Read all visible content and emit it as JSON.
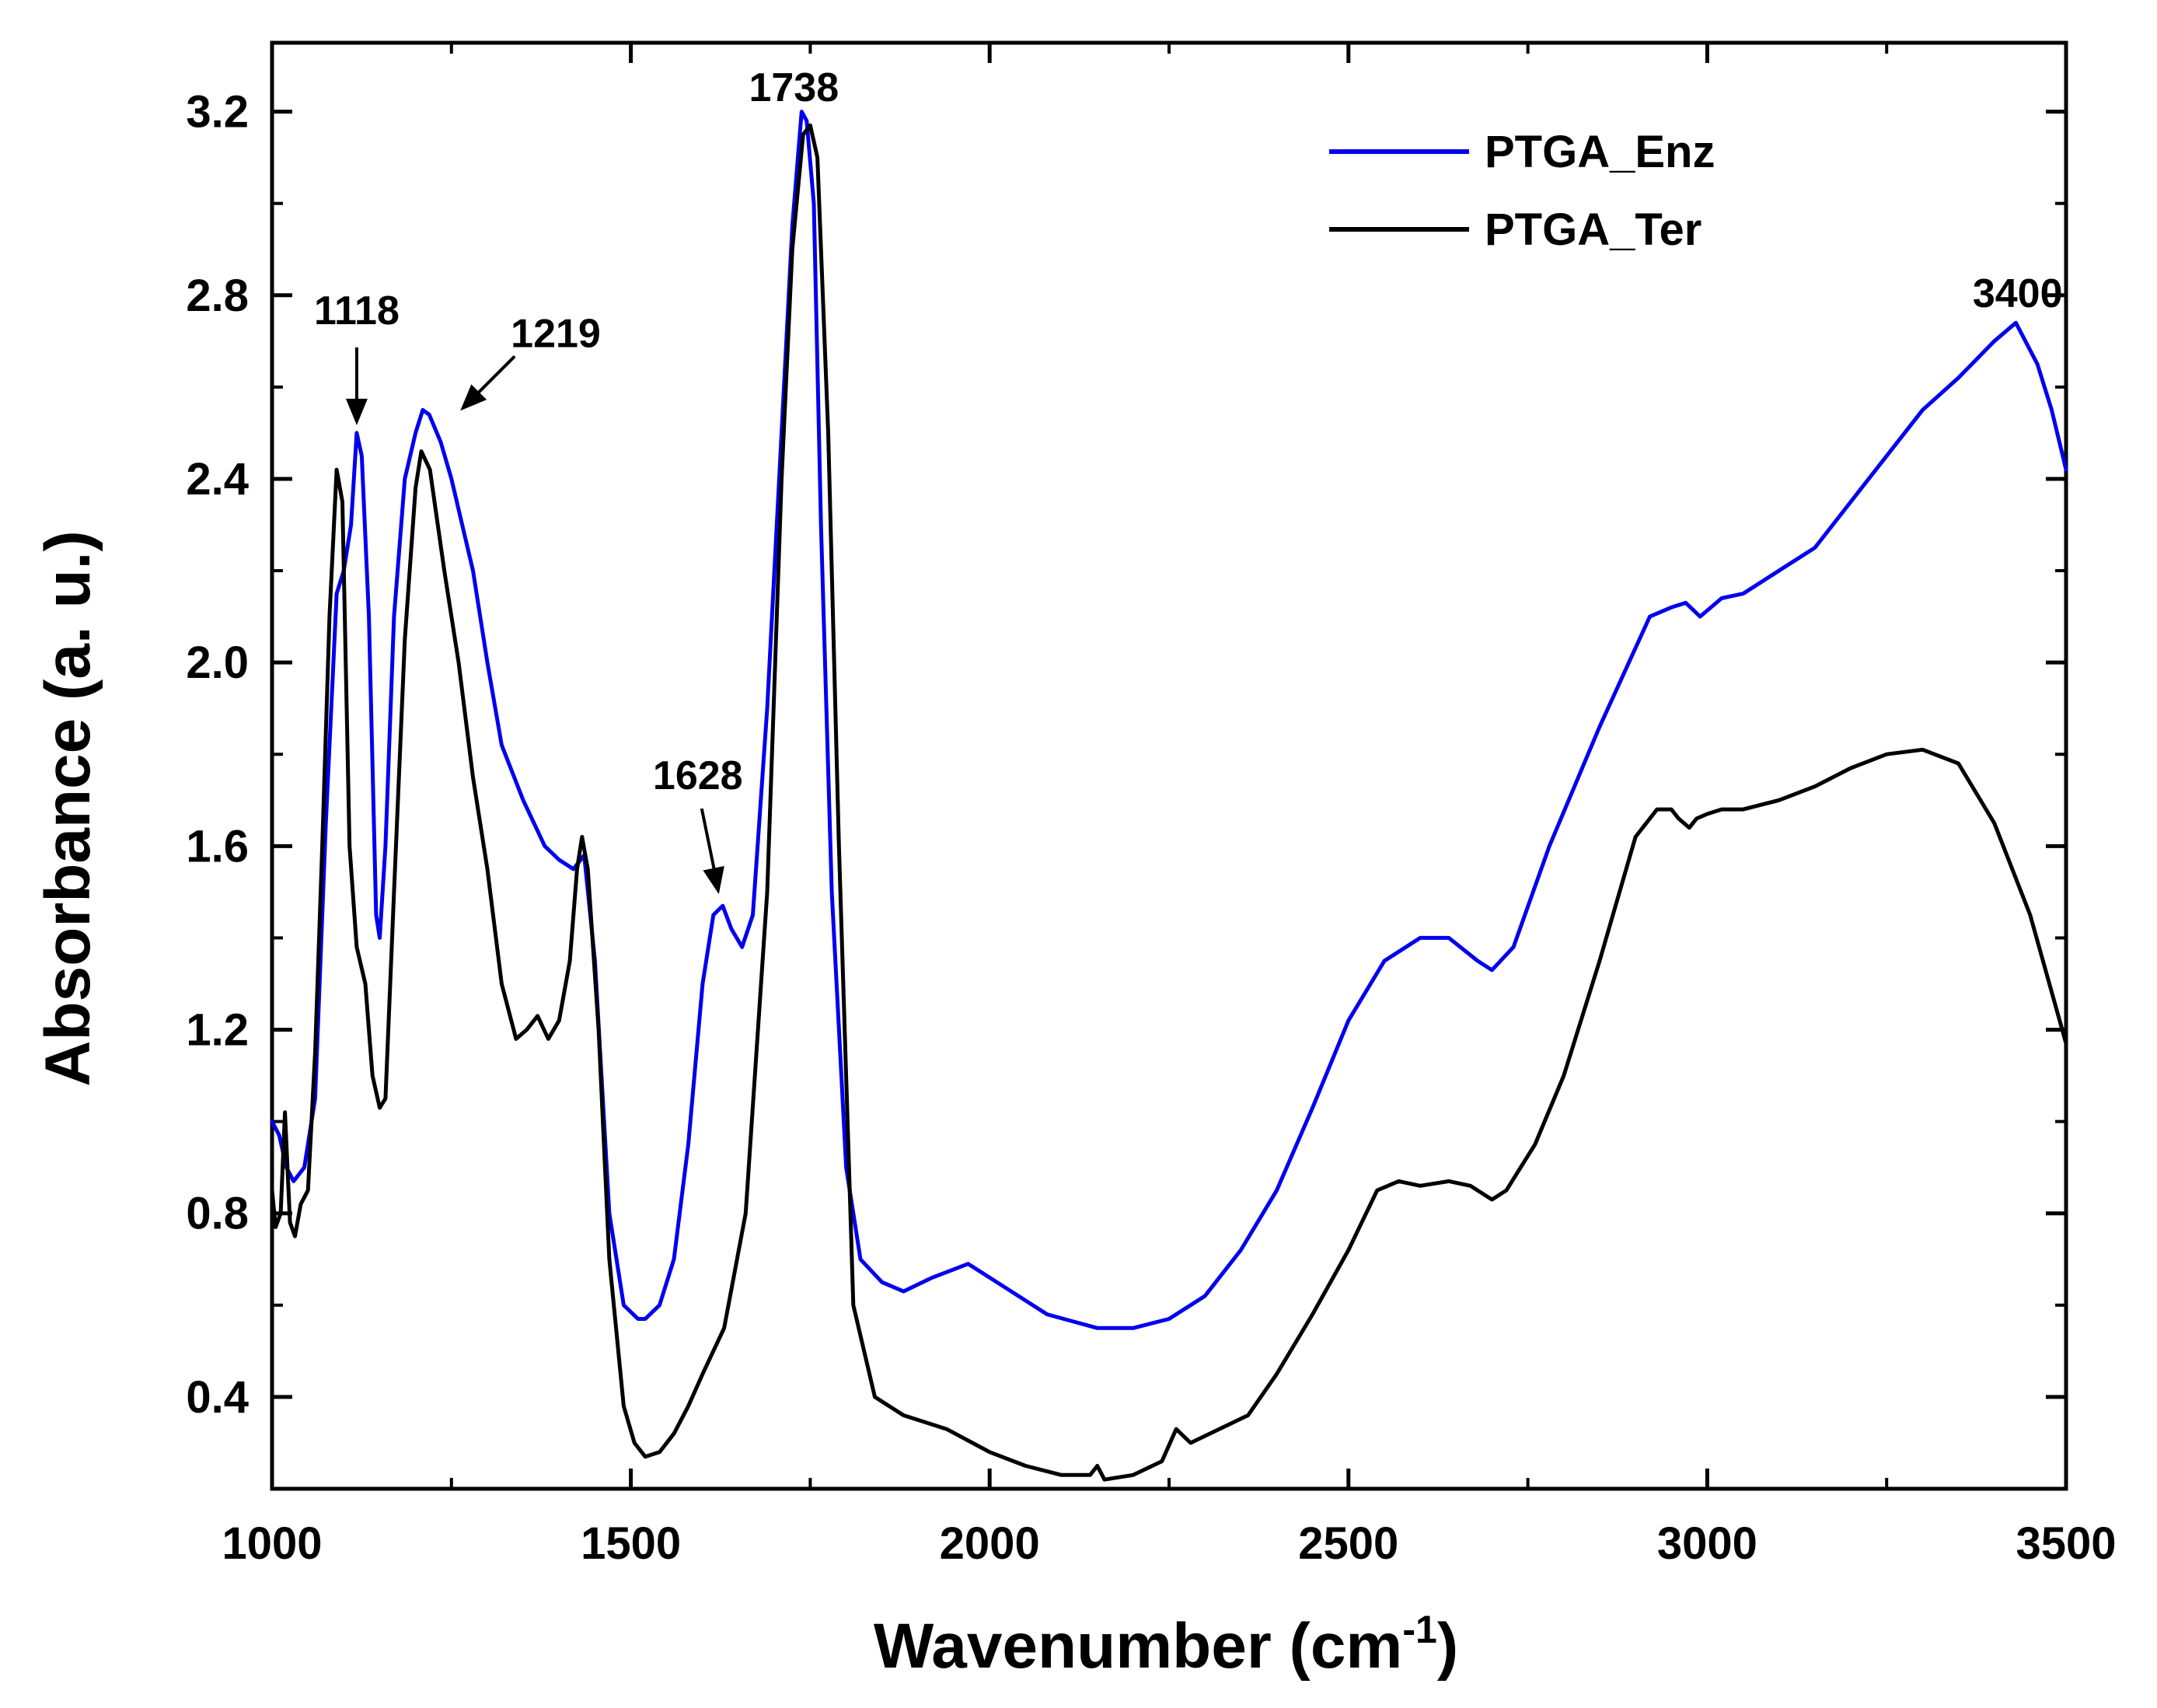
{
  "chart_data": {
    "type": "line",
    "xlabel": "Wavenumber (cm",
    "xlabel_sup": "-1",
    "xlabel_close": ")",
    "ylabel": "Absorbance (a. u.)",
    "xlim": [
      1000,
      3500
    ],
    "ylim": [
      0.2,
      3.35
    ],
    "xticks": [
      1000,
      1500,
      2000,
      2500,
      3000,
      3500
    ],
    "xtick_labels": [
      "1000",
      "1500",
      "2000",
      "2500",
      "3000",
      "3500"
    ],
    "yticks": [
      0.4,
      0.8,
      1.2,
      1.6,
      2.0,
      2.4,
      2.8,
      3.2
    ],
    "ytick_labels": [
      "0.4",
      "0.8",
      "1.2",
      "1.6",
      "2.0",
      "2.4",
      "2.8",
      "3.2"
    ],
    "legend_position": "top-right",
    "colors": {
      "PTGA_Enz": "#0000ee",
      "PTGA_Ter": "#000000",
      "axis": "#000000"
    },
    "series": [
      {
        "name": "PTGA_Enz",
        "x": [
          1000,
          1010,
          1020,
          1030,
          1045,
          1060,
          1075,
          1090,
          1100,
          1110,
          1118,
          1125,
          1135,
          1145,
          1150,
          1158,
          1170,
          1185,
          1200,
          1210,
          1219,
          1235,
          1250,
          1265,
          1280,
          1300,
          1320,
          1350,
          1380,
          1400,
          1420,
          1435,
          1450,
          1470,
          1490,
          1510,
          1520,
          1540,
          1560,
          1580,
          1600,
          1615,
          1628,
          1640,
          1655,
          1670,
          1690,
          1710,
          1725,
          1738,
          1745,
          1755,
          1765,
          1780,
          1800,
          1820,
          1850,
          1880,
          1920,
          1970,
          2020,
          2080,
          2150,
          2200,
          2250,
          2300,
          2350,
          2400,
          2450,
          2500,
          2550,
          2600,
          2640,
          2680,
          2700,
          2730,
          2780,
          2850,
          2920,
          2950,
          2970,
          2990,
          3020,
          3050,
          3100,
          3150,
          3200,
          3250,
          3300,
          3350,
          3400,
          3430,
          3460,
          3480,
          3500
        ],
        "y": [
          1.0,
          0.97,
          0.9,
          0.87,
          0.9,
          1.05,
          1.65,
          2.15,
          2.2,
          2.3,
          2.5,
          2.45,
          2.1,
          1.45,
          1.4,
          1.6,
          2.1,
          2.4,
          2.5,
          2.55,
          2.54,
          2.48,
          2.4,
          2.3,
          2.2,
          2.0,
          1.82,
          1.7,
          1.6,
          1.57,
          1.55,
          1.58,
          1.35,
          0.8,
          0.6,
          0.57,
          0.57,
          0.6,
          0.7,
          0.95,
          1.3,
          1.45,
          1.47,
          1.42,
          1.38,
          1.45,
          1.9,
          2.5,
          2.95,
          3.2,
          3.18,
          3.0,
          2.3,
          1.5,
          0.9,
          0.7,
          0.65,
          0.63,
          0.66,
          0.69,
          0.64,
          0.58,
          0.55,
          0.55,
          0.57,
          0.62,
          0.72,
          0.85,
          1.03,
          1.22,
          1.35,
          1.4,
          1.4,
          1.35,
          1.33,
          1.38,
          1.6,
          1.86,
          2.1,
          2.12,
          2.13,
          2.1,
          2.14,
          2.15,
          2.2,
          2.25,
          2.35,
          2.45,
          2.55,
          2.62,
          2.7,
          2.74,
          2.65,
          2.55,
          2.42
        ]
      },
      {
        "name": "PTGA_Ter",
        "x": [
          1000,
          1005,
          1012,
          1018,
          1025,
          1032,
          1040,
          1050,
          1060,
          1070,
          1080,
          1090,
          1098,
          1108,
          1118,
          1130,
          1140,
          1150,
          1158,
          1170,
          1185,
          1200,
          1208,
          1220,
          1240,
          1260,
          1280,
          1300,
          1320,
          1340,
          1355,
          1370,
          1385,
          1400,
          1415,
          1425,
          1432,
          1440,
          1455,
          1470,
          1490,
          1505,
          1520,
          1540,
          1560,
          1580,
          1600,
          1630,
          1660,
          1690,
          1710,
          1725,
          1740,
          1750,
          1760,
          1775,
          1790,
          1810,
          1840,
          1880,
          1940,
          2000,
          2050,
          2100,
          2140,
          2150,
          2160,
          2200,
          2240,
          2260,
          2280,
          2320,
          2360,
          2400,
          2450,
          2500,
          2540,
          2570,
          2600,
          2640,
          2670,
          2700,
          2720,
          2760,
          2800,
          2850,
          2900,
          2930,
          2950,
          2960,
          2975,
          2985,
          3000,
          3020,
          3050,
          3100,
          3150,
          3200,
          3250,
          3300,
          3350,
          3400,
          3450,
          3500
        ],
        "y": [
          0.85,
          0.77,
          0.8,
          1.02,
          0.78,
          0.75,
          0.82,
          0.85,
          1.15,
          1.6,
          2.1,
          2.42,
          2.35,
          1.6,
          1.38,
          1.3,
          1.1,
          1.03,
          1.05,
          1.5,
          2.05,
          2.38,
          2.46,
          2.42,
          2.2,
          2.0,
          1.75,
          1.55,
          1.3,
          1.18,
          1.2,
          1.23,
          1.18,
          1.22,
          1.35,
          1.55,
          1.62,
          1.55,
          1.2,
          0.7,
          0.38,
          0.3,
          0.27,
          0.28,
          0.32,
          0.38,
          0.45,
          0.55,
          0.8,
          1.5,
          2.4,
          2.9,
          3.15,
          3.17,
          3.1,
          2.5,
          1.6,
          0.6,
          0.4,
          0.36,
          0.33,
          0.28,
          0.25,
          0.23,
          0.23,
          0.25,
          0.22,
          0.23,
          0.26,
          0.33,
          0.3,
          0.33,
          0.36,
          0.45,
          0.58,
          0.72,
          0.85,
          0.87,
          0.86,
          0.87,
          0.86,
          0.83,
          0.85,
          0.95,
          1.1,
          1.35,
          1.62,
          1.68,
          1.68,
          1.66,
          1.64,
          1.66,
          1.67,
          1.68,
          1.68,
          1.7,
          1.73,
          1.77,
          1.8,
          1.81,
          1.78,
          1.65,
          1.45,
          1.17
        ]
      }
    ],
    "annotations": [
      {
        "label": "1118",
        "x": 1118,
        "y": 2.5,
        "arrow": "down"
      },
      {
        "label": "1219",
        "x": 1219,
        "y": 2.54,
        "arrow": "diagonal"
      },
      {
        "label": "1628",
        "x": 1628,
        "y": 1.47,
        "arrow": "diagonal-short"
      },
      {
        "label": "1738",
        "x": 1738,
        "y": 3.2,
        "arrow": "none"
      },
      {
        "label": "3400",
        "x": 3400,
        "y": 2.74,
        "arrow": "none"
      }
    ]
  }
}
